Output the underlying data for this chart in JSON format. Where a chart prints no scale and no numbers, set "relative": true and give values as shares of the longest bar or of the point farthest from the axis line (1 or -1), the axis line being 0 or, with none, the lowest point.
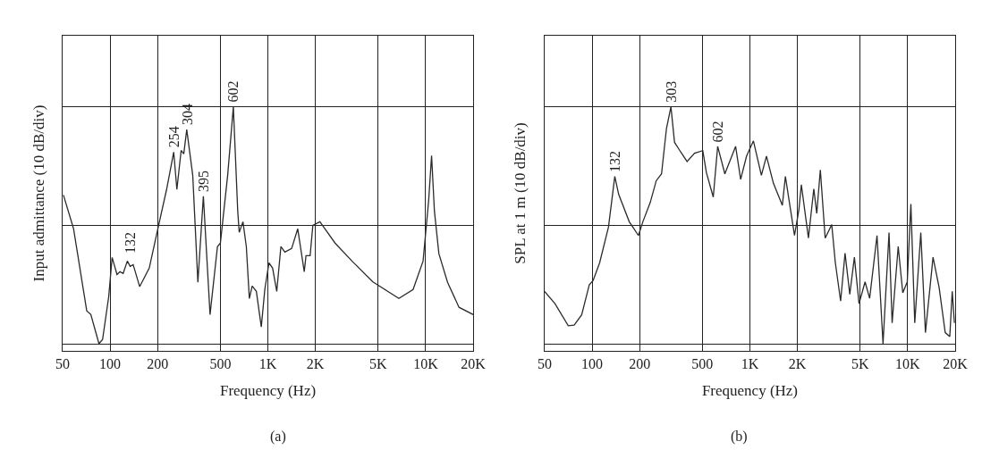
{
  "chart_data": [
    {
      "type": "line",
      "relative": true,
      "log": "x",
      "xlabel": "Frequency (Hz)",
      "ylabel": "Input admittance (10 dB/div)",
      "grid": true,
      "marker": "none",
      "line_style": "solid",
      "xlim": [
        50,
        20000
      ],
      "xticks": [
        50,
        100,
        200,
        500,
        {
          "value": 1000,
          "label": "1K"
        },
        {
          "value": 2000,
          "label": "2K"
        },
        {
          "value": 5000,
          "label": "5K"
        },
        {
          "value": 10000,
          "label": "10K"
        },
        {
          "value": 20000,
          "label": "20K"
        }
      ],
      "series": [
        {
          "color": "#2b2b2b",
          "x": [
            50.6,
            58.7,
            71.1,
            75.5,
            85,
            89.6,
            98,
            103,
            110.6,
            115.5,
            121,
            128.6,
            134,
            140,
            154,
            177,
            203,
            228,
            253,
            265,
            282,
            293,
            306,
            334,
            360,
            390,
            430,
            479,
            500,
            556,
            604,
            644,
            658,
            695,
            730,
            763,
            795,
            845,
            908,
            956,
            1016,
            1071,
            1138,
            1209,
            1281,
            1414,
            1546,
            1700,
            1744,
            1852,
            1927,
            2136,
            2664,
            3410,
            4608,
            6761,
            8321,
            9626,
            10445,
            10900,
            11360,
            12125,
            13760,
            16260,
            20000
          ],
          "values": [
            0.628,
            0.485,
            0.139,
            0.123,
            0.0,
            0.018,
            0.199,
            0.364,
            0.292,
            0.304,
            0.297,
            0.349,
            0.327,
            0.334,
            0.241,
            0.319,
            0.5,
            0.651,
            0.809,
            0.651,
            0.816,
            0.801,
            0.904,
            0.711,
            0.259,
            0.623,
            0.123,
            0.41,
            0.425,
            0.711,
            1.0,
            0.56,
            0.47,
            0.515,
            0.41,
            0.191,
            0.244,
            0.221,
            0.071,
            0.229,
            0.342,
            0.319,
            0.221,
            0.41,
            0.387,
            0.402,
            0.485,
            0.304,
            0.372,
            0.372,
            0.5,
            0.515,
            0.425,
            0.349,
            0.262,
            0.191,
            0.229,
            0.349,
            0.605,
            0.794,
            0.56,
            0.38,
            0.259,
            0.154,
            0.123
          ]
        }
      ],
      "annotations": [
        {
          "text": "132",
          "x": 134,
          "y": 0.36
        },
        {
          "text": "254",
          "x": 253,
          "y": 0.81
        },
        {
          "text": "304",
          "x": 306,
          "y": 0.904
        },
        {
          "text": "395",
          "x": 390,
          "y": 0.623
        },
        {
          "text": "602",
          "x": 604,
          "y": 1.0
        },
        "(a)"
      ]
    },
    {
      "type": "line",
      "relative": true,
      "log": "x",
      "xlabel": "Frequency (Hz)",
      "ylabel": "SPL at 1 m (10 dB/div)",
      "grid": true,
      "marker": "none",
      "line_style": "solid",
      "xlim": [
        50,
        20000
      ],
      "xticks": [
        50,
        100,
        200,
        500,
        {
          "value": 1000,
          "label": "1K"
        },
        {
          "value": 2000,
          "label": "2K"
        },
        {
          "value": 5000,
          "label": "5K"
        },
        {
          "value": 10000,
          "label": "10K"
        },
        {
          "value": 20000,
          "label": "20K"
        }
      ],
      "series": [
        {
          "color": "#2b2b2b",
          "x": [
            50,
            58.2,
            70.6,
            77,
            85.9,
            96,
            101.5,
            111.7,
            127,
            139.3,
            147.3,
            172,
            196.6,
            209.8,
            233.6,
            255,
            275.5,
            296,
            316,
            333,
            360,
            400,
            446,
            503,
            530,
            586,
            625,
            694,
            812,
            874,
            953,
            1053,
            1183,
            1274,
            1410,
            1606,
            1679,
            1918,
            2046,
            2119,
            2350,
            2542,
            2654,
            2796,
            3000,
            3302,
            3480,
            3759,
            4010,
            4297,
            4596,
            4918,
            5370,
            5741,
            6394,
            6980,
            7620,
            7970,
            8710,
            9310,
            9940,
            10480,
            11090,
            12110,
            12960,
            14480,
            15820,
            17300,
            18490,
            19160,
            19780
          ],
          "values": [
            0.221,
            0.169,
            0.076,
            0.079,
            0.122,
            0.249,
            0.267,
            0.342,
            0.492,
            0.706,
            0.631,
            0.515,
            0.457,
            0.515,
            0.596,
            0.688,
            0.717,
            0.908,
            1.0,
            0.85,
            0.815,
            0.769,
            0.804,
            0.815,
            0.723,
            0.619,
            0.833,
            0.717,
            0.833,
            0.694,
            0.792,
            0.856,
            0.711,
            0.792,
            0.677,
            0.584,
            0.706,
            0.457,
            0.567,
            0.671,
            0.446,
            0.654,
            0.55,
            0.734,
            0.446,
            0.503,
            0.342,
            0.18,
            0.382,
            0.209,
            0.365,
            0.169,
            0.261,
            0.192,
            0.457,
            0.0,
            0.469,
            0.088,
            0.411,
            0.215,
            0.261,
            0.59,
            0.088,
            0.469,
            0.047,
            0.365,
            0.238,
            0.047,
            0.03,
            0.221,
            0.088
          ]
        }
      ],
      "annotations": [
        {
          "text": "132",
          "x": 139.3,
          "y": 0.706
        },
        {
          "text": "303",
          "x": 316,
          "y": 1.0
        },
        {
          "text": "602",
          "x": 625,
          "y": 0.833
        },
        "(b)"
      ]
    }
  ]
}
